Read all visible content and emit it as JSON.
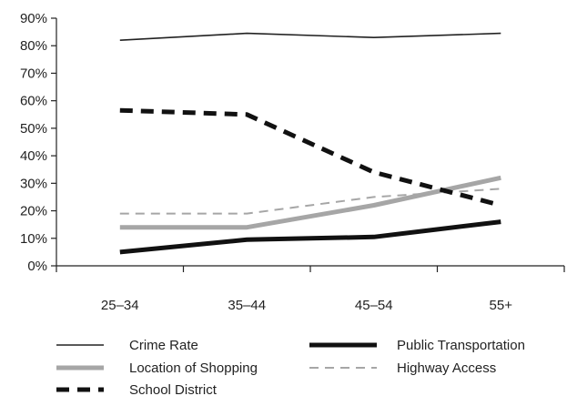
{
  "chart_data": {
    "type": "line",
    "title": "",
    "xlabel": "",
    "ylabel": "",
    "categories": [
      "25–34",
      "35–44",
      "45–54",
      "55+"
    ],
    "y_tick_labels": [
      "0%",
      "10%",
      "20%",
      "30%",
      "40%",
      "50%",
      "60%",
      "70%",
      "80%",
      "90%"
    ],
    "ylim": [
      0,
      90
    ],
    "y_unit": "%",
    "grid": false,
    "legend_position": "bottom",
    "series": [
      {
        "name": "Crime Rate",
        "values": [
          82,
          84.5,
          83,
          84.5
        ],
        "style": "thin-solid",
        "color": "#222222"
      },
      {
        "name": "Public Transportation",
        "values": [
          5,
          9.5,
          10.5,
          16
        ],
        "style": "thick-solid",
        "color": "#111111"
      },
      {
        "name": "Location of Shopping",
        "values": [
          14,
          14,
          22,
          32
        ],
        "style": "thick-solid",
        "color": "#a6a6a6"
      },
      {
        "name": "Highway Access",
        "values": [
          19,
          19,
          25,
          28
        ],
        "style": "dashed",
        "color": "#a6a6a6"
      },
      {
        "name": "School District",
        "values": [
          56.5,
          55,
          34,
          22
        ],
        "style": "thick-dashed",
        "color": "#111111"
      }
    ]
  }
}
